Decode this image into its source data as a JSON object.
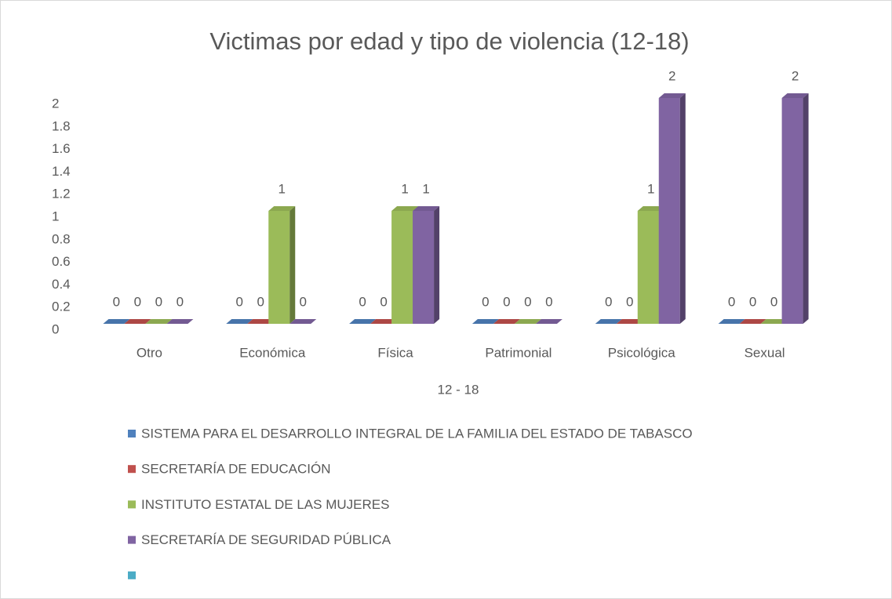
{
  "chart_data": {
    "type": "bar3d",
    "title": "Victimas por edad y tipo de violencia (12-18)",
    "x_label": "12 - 18",
    "categories": [
      "Otro",
      "Económica",
      "Física",
      "Patrimonial",
      "Psicológica",
      "Sexual"
    ],
    "series": [
      {
        "name": "SISTEMA PARA EL DESARROLLO INTEGRAL DE LA FAMILIA DEL ESTADO DE TABASCO",
        "color": "#4f81bd",
        "values": [
          0,
          0,
          0,
          0,
          0,
          0
        ]
      },
      {
        "name": "SECRETARÍA DE EDUCACIÓN",
        "color": "#c0504d",
        "values": [
          0,
          0,
          0,
          0,
          0,
          0
        ]
      },
      {
        "name": "INSTITUTO ESTATAL DE LAS MUJERES",
        "color": "#9bbb59",
        "values": [
          0,
          1,
          1,
          0,
          1,
          0
        ]
      },
      {
        "name": "SECRETARÍA DE SEGURIDAD PÚBLICA",
        "color": "#8064a2",
        "values": [
          0,
          0,
          1,
          0,
          2,
          2
        ]
      },
      {
        "name": null,
        "color": "#4bacc6",
        "values": [
          null,
          null,
          null,
          null,
          null,
          null
        ]
      }
    ],
    "ylim": [
      0,
      2
    ],
    "yticks": [
      0,
      0.2,
      0.4,
      0.6,
      0.8,
      1,
      1.2,
      1.4,
      1.6,
      1.8,
      2
    ],
    "grid": false,
    "legend": "bottom"
  }
}
